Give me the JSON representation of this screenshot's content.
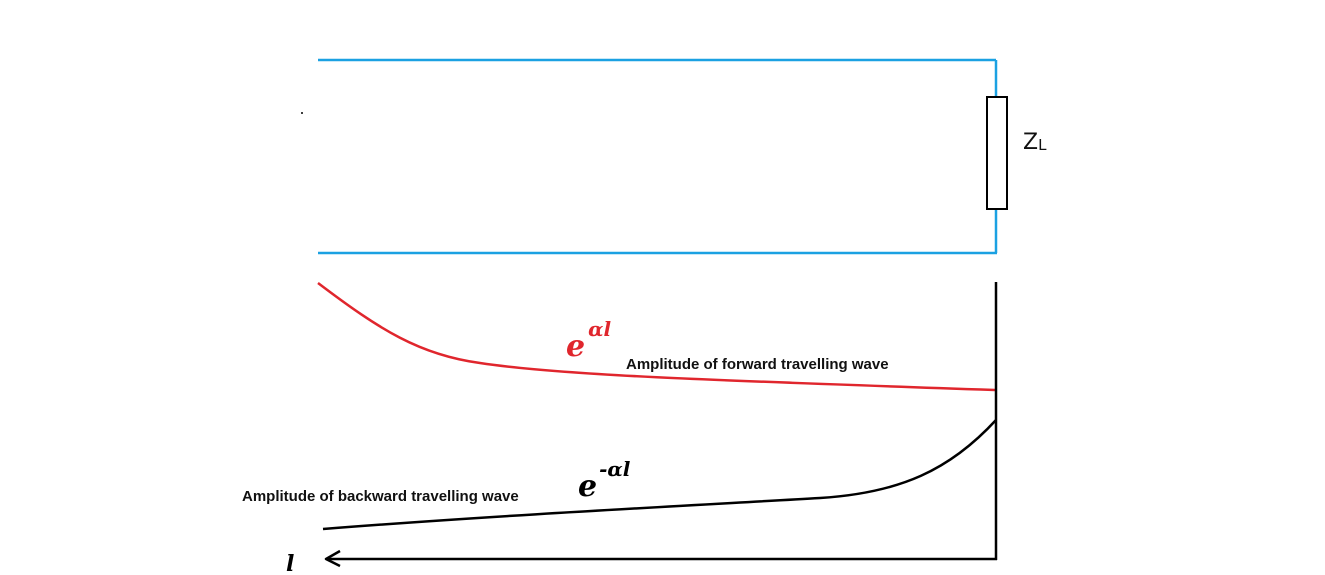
{
  "colors": {
    "line": "#1ba1e2",
    "forward": "#e0262d",
    "backward": "#000000",
    "load": "#000000"
  },
  "load": {
    "label_main": "Z",
    "label_sub": "L"
  },
  "forward": {
    "caption": "Amplitude of forward travelling wave",
    "expr_base": "e",
    "expr_exp": "αl"
  },
  "backward": {
    "caption": "Amplitude of backward travelling wave",
    "expr_base": "e",
    "expr_exp": "-αl"
  },
  "axis": {
    "label": "l"
  }
}
